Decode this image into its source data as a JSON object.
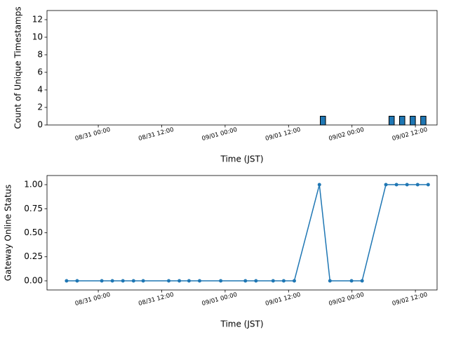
{
  "chart_data": [
    {
      "type": "bar",
      "xlabel": "Time (JST)",
      "ylabel": "Count of Unique Timestamps",
      "color": "#1f77b4",
      "edgecolor": "#000000",
      "x": [
        "09/01 18:30",
        "09/02 07:30",
        "09/02 09:30",
        "09/02 11:30",
        "09/02 13:30"
      ],
      "values": [
        1,
        1,
        1,
        1,
        1
      ],
      "xlim": [
        "08/30 14:18",
        "09/02 16:06"
      ],
      "xticks": [
        "08/31 00:00",
        "08/31 12:00",
        "09/01 00:00",
        "09/01 12:00",
        "09/02 00:00",
        "09/02 12:00"
      ],
      "ylim": [
        0,
        13.04
      ],
      "yticks": [
        0,
        2,
        4,
        6,
        8,
        10,
        12
      ]
    },
    {
      "type": "line",
      "xlabel": "Time (JST)",
      "ylabel": "Gateway Online Status",
      "color": "#1f77b4",
      "x": [
        "08/30 18:00",
        "08/30 20:00",
        "08/31 00:40",
        "08/31 02:40",
        "08/31 04:40",
        "08/31 06:40",
        "08/31 08:30",
        "08/31 13:20",
        "08/31 15:20",
        "08/31 17:10",
        "08/31 19:10",
        "08/31 23:10",
        "09/01 03:50",
        "09/01 05:50",
        "09/01 09:05",
        "09/01 11:05",
        "09/01 13:05",
        "09/01 17:50",
        "09/01 19:50",
        "09/01 23:55",
        "09/02 01:55",
        "09/02 06:25",
        "09/02 08:25",
        "09/02 10:25",
        "09/02 12:25",
        "09/02 14:25"
      ],
      "values": [
        0,
        0,
        0,
        0,
        0,
        0,
        0,
        0,
        0,
        0,
        0,
        0,
        0,
        0,
        0,
        0,
        0,
        1,
        0,
        0,
        0,
        1,
        1,
        1,
        1,
        1
      ],
      "xlim": [
        "08/30 14:18",
        "09/02 16:06"
      ],
      "xticks": [
        "08/31 00:00",
        "08/31 12:00",
        "09/01 00:00",
        "09/01 12:00",
        "09/02 00:00",
        "09/02 12:00"
      ],
      "ylim": [
        -0.095,
        1.095
      ],
      "yticks": [
        {
          "value": 0,
          "label": "0.00"
        },
        {
          "value": 0.25,
          "label": "0.25"
        },
        {
          "value": 0.5,
          "label": "0.50"
        },
        {
          "value": 0.75,
          "label": "0.75"
        },
        {
          "value": 1,
          "label": "1.00"
        }
      ]
    }
  ]
}
